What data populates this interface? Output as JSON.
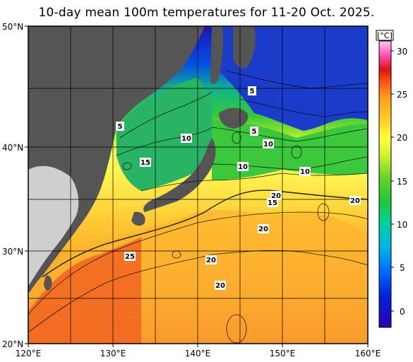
{
  "title": "10-day mean 100m temperatures for 11-20 Oct. 2025.",
  "unit_label": "[°C]",
  "lat_labels": [
    "50°N",
    "40°N",
    "30°N",
    "20°N"
  ],
  "lon_labels": [
    "120°E",
    "130°E",
    "140°E",
    "150°E",
    "160°E"
  ],
  "colorbar_ticks": [
    "30",
    "25",
    "20",
    "15",
    "10",
    "5",
    "0"
  ],
  "contour_labels": [
    "5",
    "5",
    "5",
    "10",
    "10",
    "10",
    "10",
    "15",
    "15",
    "20",
    "20",
    "20",
    "20",
    "20",
    "25"
  ],
  "colors": {
    "land": "#555555",
    "outer_land": "#cfcfcf",
    "grid": "#000000"
  }
}
